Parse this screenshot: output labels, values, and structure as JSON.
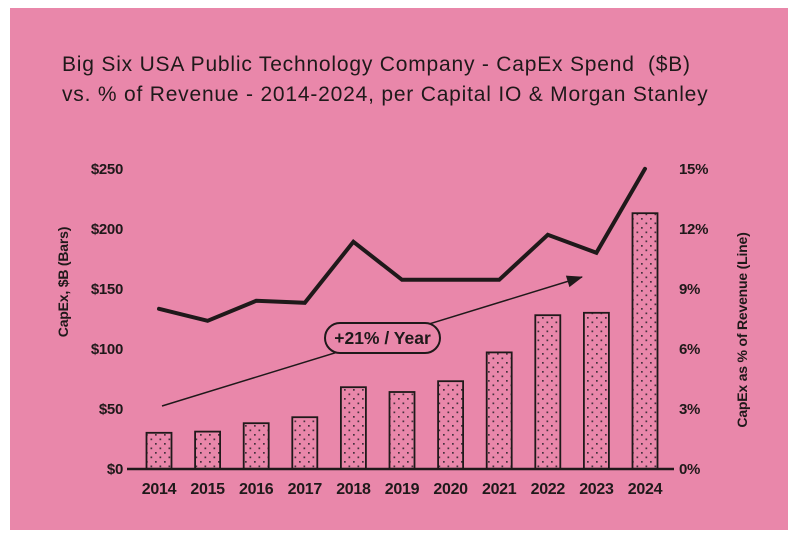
{
  "panel": {
    "bg": "#e987aa",
    "ink": "#1f191a",
    "dot": "#45303c"
  },
  "title": {
    "line1": "Big Six USA Public Technology Company - CapEx Spend  ($B)",
    "line2": "vs. % of Revenue - 2014-2024, per Capital IO & Morgan Stanley"
  },
  "chart_data": {
    "type": "bar+line combo",
    "grid": false,
    "legend_position": "none",
    "categories": [
      "2014",
      "2015",
      "2016",
      "2017",
      "2018",
      "2019",
      "2020",
      "2021",
      "2022",
      "2023",
      "2024"
    ],
    "series": [
      {
        "name": "CapEx, $B",
        "type": "bar",
        "axis": "left",
        "values": [
          30,
          31,
          38,
          43,
          68,
          64,
          73,
          97,
          128,
          130,
          213
        ]
      },
      {
        "name": "CapEx as % of Revenue",
        "type": "line",
        "axis": "right",
        "values": [
          8.0,
          7.4,
          8.4,
          8.3,
          11.35,
          9.45,
          9.45,
          9.45,
          11.7,
          10.8,
          15.0
        ]
      }
    ],
    "left_axis": {
      "label": "CapEx, $B (Bars)",
      "min": 0,
      "max": 250,
      "ticks": [
        {
          "v": 0,
          "label": "$0"
        },
        {
          "v": 50,
          "label": "$50"
        },
        {
          "v": 100,
          "label": "$100"
        },
        {
          "v": 150,
          "label": "$150"
        },
        {
          "v": 200,
          "label": "$200"
        },
        {
          "v": 250,
          "label": "$250"
        }
      ]
    },
    "right_axis": {
      "label": "CapEx as % of Revenue (Line)",
      "min": 0,
      "max": 15,
      "ticks": [
        {
          "v": 0,
          "label": "0%"
        },
        {
          "v": 3,
          "label": "3%"
        },
        {
          "v": 6,
          "label": "6%"
        },
        {
          "v": 9,
          "label": "9%"
        },
        {
          "v": 12,
          "label": "12%"
        },
        {
          "v": 15,
          "label": "15%"
        }
      ]
    },
    "annotation": {
      "text": "+21% / Year"
    }
  }
}
